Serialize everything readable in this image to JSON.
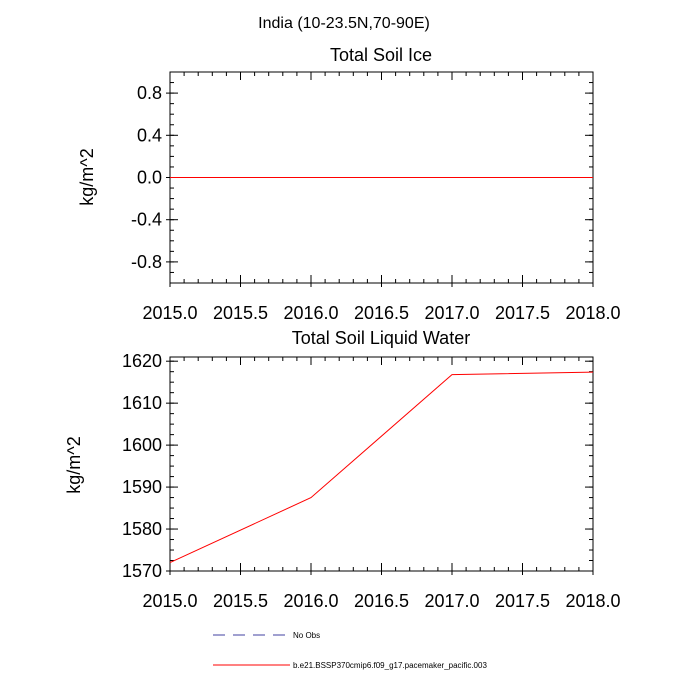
{
  "page_title": "India (10-23.5N,70-90E)",
  "chart_data": [
    {
      "type": "line",
      "title": "Total Soil Ice",
      "xlabel": "",
      "ylabel": "kg/m^2",
      "xlim": [
        2015.0,
        2018.0
      ],
      "ylim": [
        -1.0,
        1.0
      ],
      "xticks": [
        "2015.0",
        "2015.5",
        "2016.0",
        "2016.5",
        "2017.0",
        "2017.5",
        "2018.0"
      ],
      "yticks": [
        "0.8",
        "0.4",
        "0.0",
        "-0.4",
        "-0.8"
      ],
      "grid": false,
      "series": [
        {
          "name": "b.e21.BSSP370cmip6.f09_g17.pacemaker_pacific.003",
          "color": "#ff0000",
          "x": [
            2015.0,
            2016.0,
            2017.0,
            2018.0
          ],
          "y": [
            0.0,
            0.0,
            0.0,
            0.0
          ]
        }
      ]
    },
    {
      "type": "line",
      "title": "Total Soil Liquid Water",
      "xlabel": "",
      "ylabel": "kg/m^2",
      "xlim": [
        2015.0,
        2018.0
      ],
      "ylim": [
        1570,
        1621
      ],
      "xticks": [
        "2015.0",
        "2015.5",
        "2016.0",
        "2016.5",
        "2017.0",
        "2017.5",
        "2018.0"
      ],
      "yticks": [
        "1620",
        "1610",
        "1600",
        "1590",
        "1580",
        "1570"
      ],
      "grid": false,
      "series": [
        {
          "name": "b.e21.BSSP370cmip6.f09_g17.pacemaker_pacific.003",
          "color": "#ff0000",
          "x": [
            2015.0,
            2016.0,
            2017.0,
            2018.0
          ],
          "y": [
            1572.0,
            1587.5,
            1616.8,
            1617.4
          ]
        }
      ]
    }
  ],
  "legend": {
    "placement": "bottom",
    "items": [
      {
        "label": "No Obs",
        "color": "#4040a0",
        "dashed": true
      },
      {
        "label": "b.e21.BSSP370cmip6.f09_g17.pacemaker_pacific.003",
        "color": "#ff0000",
        "dashed": false
      }
    ]
  }
}
